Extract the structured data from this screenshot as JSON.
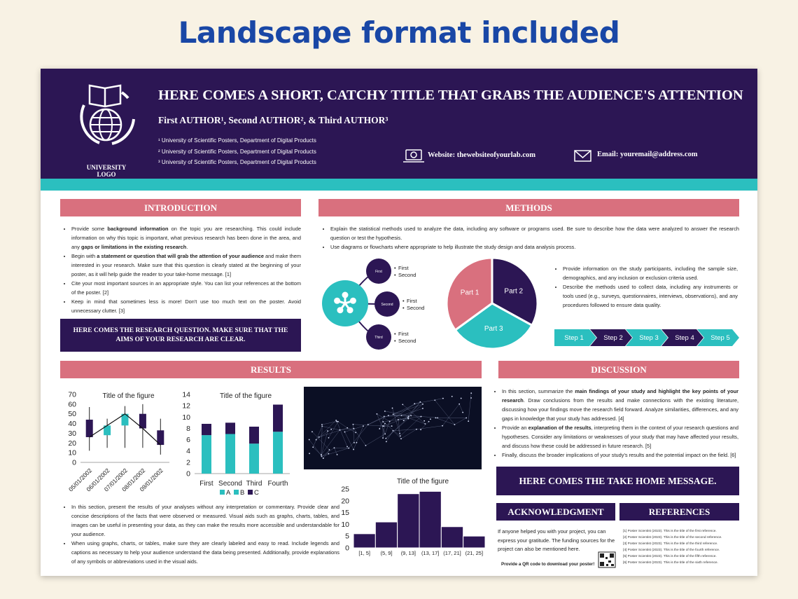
{
  "banner": "Landscape format included",
  "header": {
    "title": "HERE COMES A SHORT, CATCHY TITLE THAT GRABS THE AUDIENCE'S ATTENTION",
    "authors": "First AUTHOR¹, Second AUTHOR², & Third AUTHOR³",
    "affiliations": [
      "¹ University of Scientific Posters, Department of Digital Products",
      "² University of Scientific Posters, Department of Digital Products",
      "³ University of Scientific Posters, Department of Digital Products"
    ],
    "logo_label": "UNIVERSITY LOGO",
    "website": "Website: thewebsiteofyourlab.com",
    "email": "Email: youremail@address.com"
  },
  "introduction": {
    "heading": "INTRODUCTION",
    "bullets": [
      [
        {
          "text": "Provide some "
        },
        {
          "text": "background information",
          "bold": true
        },
        {
          "text": " on the topic you are researching. This could include information on why this topic is important, what previous research has been done in the area, and any "
        },
        {
          "text": "gaps or limitations in the existing research",
          "bold": true
        },
        {
          "text": "."
        }
      ],
      [
        {
          "text": "Begin with "
        },
        {
          "text": "a statement or question that will grab the attention of your audience",
          "bold": true
        },
        {
          "text": " and make them interested in your research. Make sure that this question is clearly stated at the beginning of your poster, as it will help guide the reader to your take-home message. [1]"
        }
      ],
      [
        {
          "text": "Cite your most important sources in an appropriate style. You can list your references at the bottom of the poster. [2]"
        }
      ],
      [
        {
          "text": "Keep in mind that sometimes less is more! Don't use too much text on the poster. Avoid unnecessary clutter. [3]"
        }
      ]
    ],
    "callout": "HERE COMES THE RESEARCH QUESTION. MAKE SURE THAT THE AIMS OF YOUR RESEARCH ARE CLEAR."
  },
  "methods": {
    "heading": "METHODS",
    "bullets": [
      [
        {
          "text": "Explain the statistical methods used to analyze the data, including any software or programs used. Be sure to describe how the data were analyzed to answer the research question or test the hypothesis."
        }
      ],
      [
        {
          "text": "Use diagrams or flowcharts where appropriate to help illustrate the study design and data analysis process."
        }
      ]
    ],
    "diagram": {
      "nodes": [
        {
          "label": "First",
          "items": [
            "First",
            "Second"
          ]
        },
        {
          "label": "Second",
          "items": [
            "First",
            "Second"
          ]
        },
        {
          "label": "Third",
          "items": [
            "First",
            "Second"
          ]
        }
      ]
    },
    "bullets2": [
      [
        {
          "text": "Provide information on the study participants, including the sample size, demographics, and any inclusion or exclusion criteria used."
        }
      ],
      [
        {
          "text": "Describe the methods used to collect data, including any instruments or tools used (e.g., surveys, questionnaires, interviews, observations), and any procedures followed to ensure data quality."
        }
      ]
    ],
    "steps": [
      "Step 1",
      "Step 2",
      "Step 3",
      "Step 4",
      "Step 5"
    ]
  },
  "results": {
    "heading": "RESULTS",
    "bullets": [
      [
        {
          "text": "In this section, present the results of your analyses without any interpretation or commentary. Provide clear and concise descriptions of the facts that were observed or measured. Visual aids such as graphs, charts, tables, and images can be useful in presenting your data, as they can make the results more accessible and understandable for your audience."
        }
      ],
      [
        {
          "text": "When using graphs, charts, or tables, make sure they are clearly labeled and easy to read. Include legends and captions as necessary to help your audience understand the data being presented. Additionally, provide explanations of any symbols or abbreviations used in the visual aids."
        }
      ]
    ]
  },
  "discussion": {
    "heading": "DISCUSSION",
    "bullets": [
      [
        {
          "text": "In this section, summarize the "
        },
        {
          "text": "main findings of your study and highlight the key points of your research",
          "bold": true
        },
        {
          "text": ". Draw conclusions from the results and make connections with the existing literature, discussing how your findings move the research field forward. Analyze similarities, differences, and any gaps in knowledge that your study has addressed. [4]"
        }
      ],
      [
        {
          "text": "Provide an "
        },
        {
          "text": "explanation of the results",
          "bold": true
        },
        {
          "text": ", interpreting them in the context of your research questions and hypotheses. Consider any limitations or weaknesses of your study that may have affected your results, and discuss how these could be addressed in future research. [5]"
        }
      ],
      [
        {
          "text": "Finally, discuss the broader implications of your study's results and the potential impact on the field. [6]"
        }
      ]
    ],
    "take_home": "HERE COMES THE TAKE HOME MESSAGE."
  },
  "acknowledgment": {
    "heading": "ACKNOWLEDGMENT",
    "text": "If anyone helped you with your project, you can express your gratitude. The funding sources for the project can also be mentioned here.",
    "qr_note": "Provide a QR code to download your poster!"
  },
  "references": {
    "heading": "REFERENCES",
    "items": [
      "[1] Poster Scientist (2023). This is the title of the first reference.",
      "[2] Poster Scientist (2023). This is the title of the second reference.",
      "[3] Poster Scientist (2023). This is the title of the third reference.",
      "[4] Poster Scientist (2023). This is the title of the fourth reference.",
      "[5] Poster Scientist (2023). This is the title of the fifth reference.",
      "[6] Poster Scientist (2023). This is the title of the sixth reference."
    ]
  },
  "chart_data": [
    {
      "type": "candlestick",
      "title": "Title of the figure",
      "categories": [
        "05/01/2002",
        "06/01/2002",
        "07/01/2002",
        "08/01/2002",
        "09/01/2002"
      ],
      "open": [
        44,
        28,
        38,
        50,
        33
      ],
      "high": [
        57,
        45,
        58,
        60,
        45
      ],
      "low": [
        12,
        15,
        15,
        15,
        8
      ],
      "close": [
        26,
        38,
        50,
        35,
        18
      ],
      "up_color": "#2bbfbf",
      "down_color": "#2c1654",
      "line": true,
      "ylim": [
        0,
        70
      ],
      "yticks": [
        0,
        10,
        20,
        30,
        40,
        50,
        60,
        70
      ]
    },
    {
      "type": "stacked_bar",
      "title": "Title of the figure",
      "categories": [
        "First",
        "Second",
        "Third",
        "Fourth"
      ],
      "series": [
        {
          "name": "A",
          "color": "#2bbfbf",
          "values": [
            6.8,
            7,
            5.3,
            7.4
          ]
        },
        {
          "name": "B",
          "color": "#2bbfbf",
          "values": [
            0,
            0,
            0,
            0
          ]
        },
        {
          "name": "C",
          "color": "#2c1654",
          "values": [
            2,
            2,
            3,
            4.8
          ]
        }
      ],
      "ylim": [
        0,
        14
      ],
      "yticks": [
        0,
        2,
        4,
        6,
        8,
        10,
        12,
        14
      ],
      "legend": "bottom"
    },
    {
      "type": "histogram",
      "title": "Title of the figure",
      "categories": [
        "[1, 5]",
        "(5, 9]",
        "(9, 13]",
        "(13, 17]",
        "(17, 21]",
        "(21, 25]"
      ],
      "values": [
        6,
        11,
        23,
        24,
        9,
        5
      ],
      "color": "#2c1654",
      "ylim": [
        0,
        25
      ],
      "yticks": [
        0,
        5,
        10,
        15,
        20,
        25
      ]
    },
    {
      "type": "pie",
      "categories": [
        "Part 1",
        "Part 2",
        "Part 3"
      ],
      "values": [
        35,
        33,
        32
      ],
      "colors": [
        "#d9707e",
        "#2c1654",
        "#2bbfbf"
      ]
    }
  ]
}
